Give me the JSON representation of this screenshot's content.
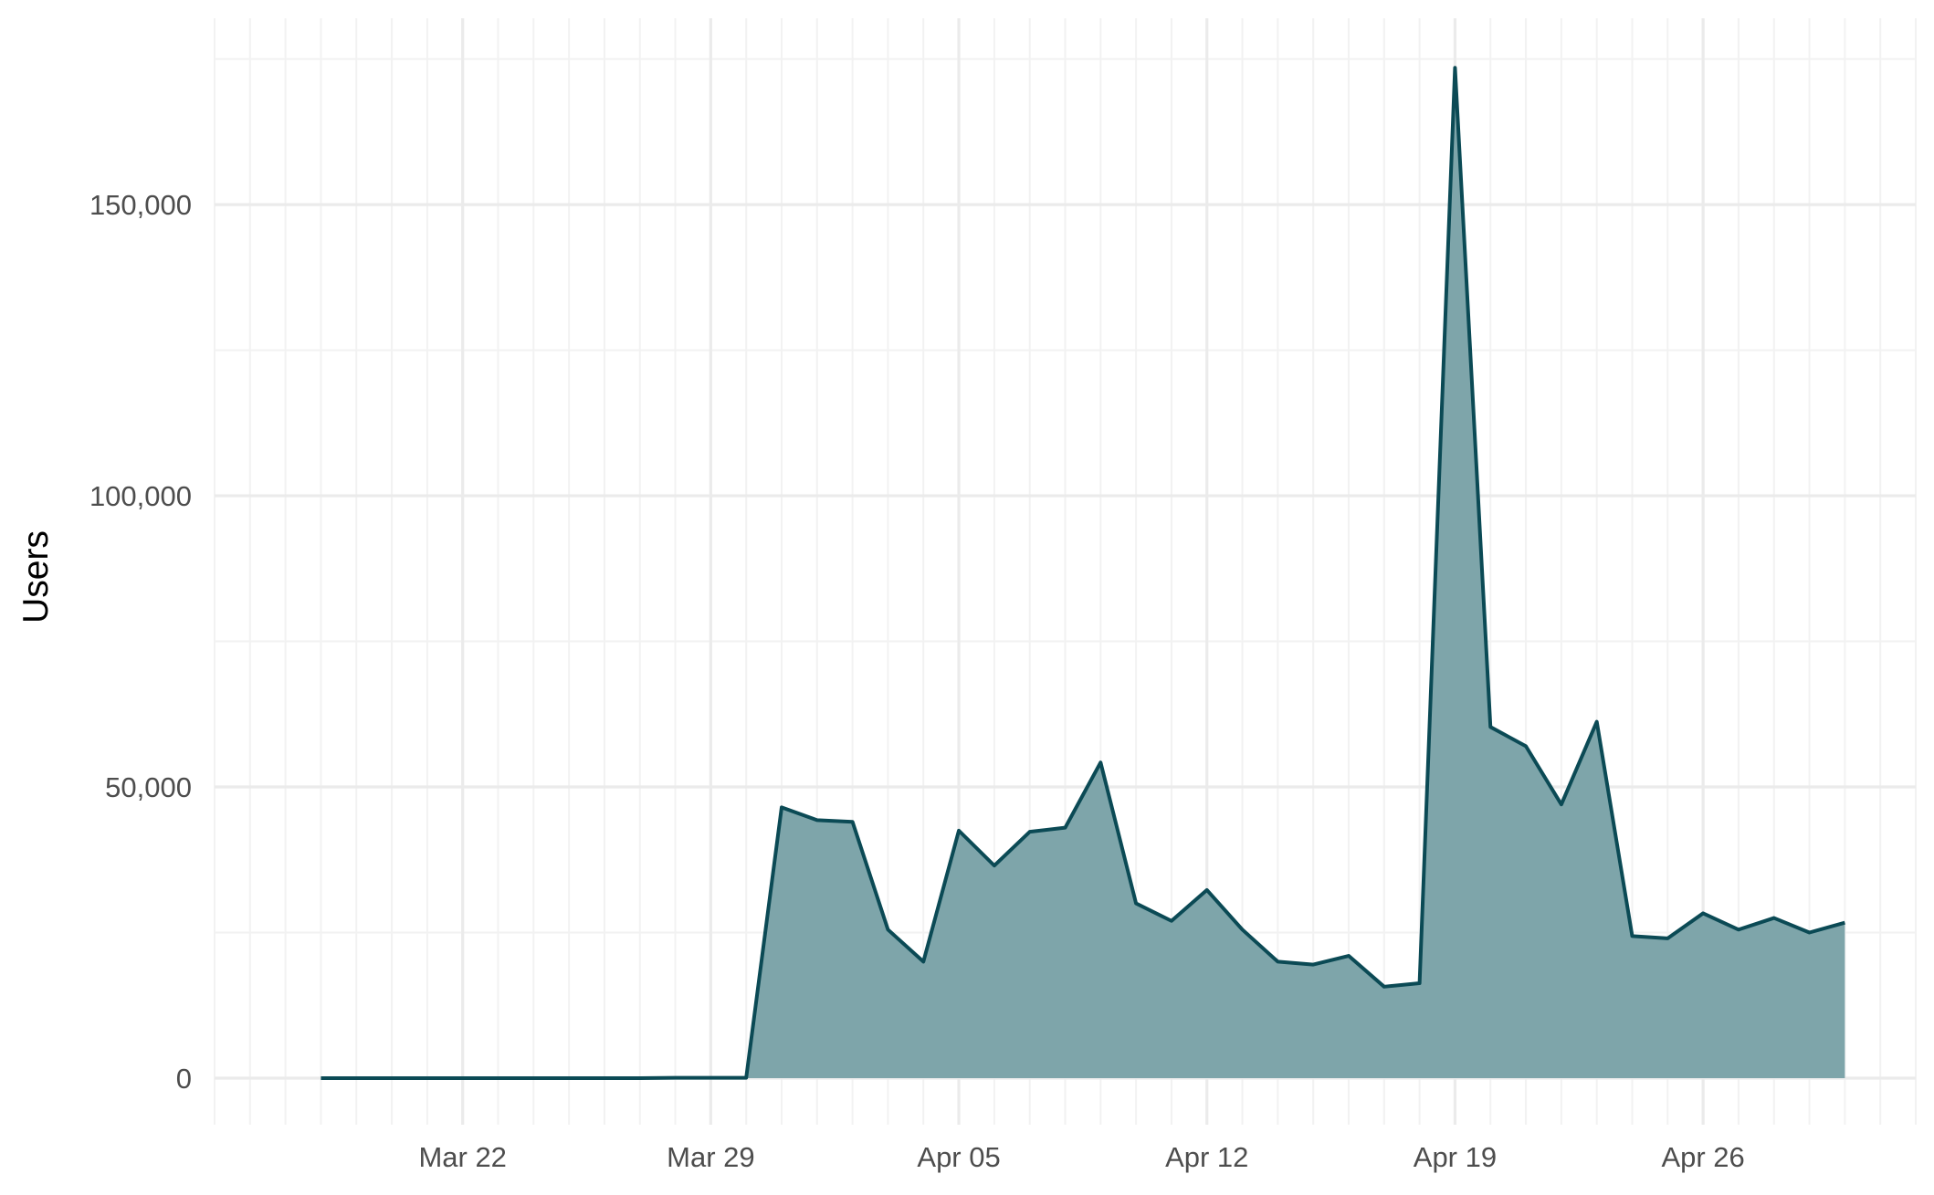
{
  "chart_data": {
    "type": "area",
    "title": "",
    "xlabel": "",
    "ylabel": "Users",
    "x_tick_labels": [
      "Mar 22",
      "Mar 29",
      "Apr 05",
      "Apr 12",
      "Apr 19",
      "Apr 26"
    ],
    "x_tick_dates": [
      "2020-03-22",
      "2020-03-29",
      "2020-04-05",
      "2020-04-12",
      "2020-04-19",
      "2020-04-26"
    ],
    "xlim": [
      "2020-03-15",
      "2020-05-02"
    ],
    "y_tick_labels": [
      "0",
      "50,000",
      "100,000",
      "150,000"
    ],
    "y_tick_values": [
      0,
      50000,
      100000,
      150000
    ],
    "ylim": [
      -8000,
      182000
    ],
    "grid": true,
    "legend": "none",
    "colors": {
      "line": "#0b4a55",
      "fill": "#7ea5aa",
      "grid_major": "#ebebeb",
      "grid_minor": "#f2f2f2"
    },
    "series": [
      {
        "x": [
          "2020-03-18",
          "2020-03-19",
          "2020-03-20",
          "2020-03-21",
          "2020-03-22",
          "2020-03-23",
          "2020-03-24",
          "2020-03-25",
          "2020-03-26",
          "2020-03-27",
          "2020-03-28",
          "2020-03-29",
          "2020-03-30",
          "2020-03-31",
          "2020-04-01",
          "2020-04-02",
          "2020-04-03",
          "2020-04-04",
          "2020-04-05",
          "2020-04-06",
          "2020-04-07",
          "2020-04-08",
          "2020-04-09",
          "2020-04-10",
          "2020-04-11",
          "2020-04-12",
          "2020-04-13",
          "2020-04-14",
          "2020-04-15",
          "2020-04-16",
          "2020-04-17",
          "2020-04-18",
          "2020-04-19",
          "2020-04-20",
          "2020-04-21",
          "2020-04-22",
          "2020-04-23",
          "2020-04-24",
          "2020-04-25",
          "2020-04-26",
          "2020-04-27",
          "2020-04-28",
          "2020-04-29",
          "2020-04-30"
        ],
        "values": [
          0,
          0,
          0,
          0,
          0,
          0,
          0,
          0,
          0,
          0,
          50,
          50,
          50,
          46500,
          44300,
          44000,
          25500,
          20000,
          42500,
          36500,
          42300,
          43000,
          54200,
          30000,
          27000,
          32300,
          25500,
          20000,
          19500,
          21000,
          15700,
          16300,
          173500,
          60300,
          57000,
          47000,
          61200,
          24400,
          24000,
          28300,
          25500,
          27500,
          25000,
          26700
        ]
      }
    ]
  }
}
